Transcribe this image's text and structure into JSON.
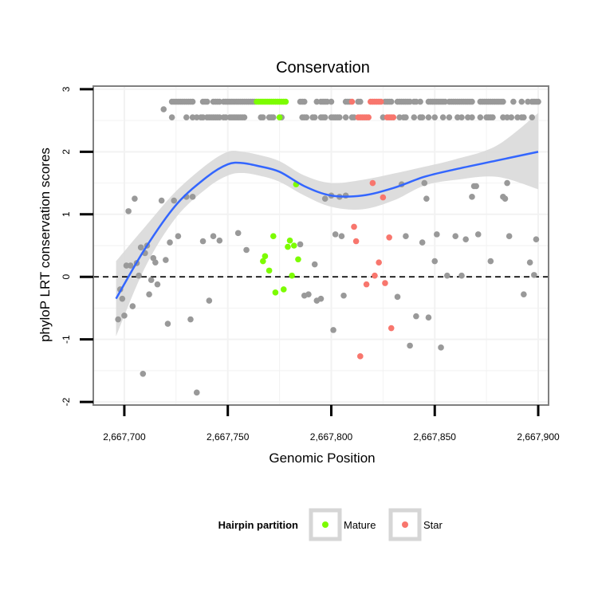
{
  "chart_data": {
    "type": "scatter",
    "title": "Conservation",
    "xlabel": "Genomic Position",
    "ylabel": "phyloP LRT conservation scores",
    "xlim": [
      2667685,
      2667905
    ],
    "ylim": [
      -2.05,
      3.05
    ],
    "x_ticks": [
      2667700,
      2667750,
      2667800,
      2667850,
      2667900
    ],
    "x_tick_labels": [
      "2,667,700",
      "2,667,750",
      "2,667,800",
      "2,667,850",
      "2,667,900"
    ],
    "y_ticks": [
      -2,
      -1,
      0,
      1,
      2,
      3
    ],
    "y_tick_labels": [
      "-2",
      "-1",
      "0",
      "1",
      "2",
      "3"
    ],
    "reference_line": {
      "y": 0,
      "style": "dashed"
    },
    "grid": true,
    "legend": {
      "title": "Hairpin partition",
      "position": "bottom",
      "entries": [
        {
          "label": "Mature",
          "color": "#7cfc00"
        },
        {
          "label": "Star",
          "color": "#f8766d"
        }
      ]
    },
    "smooth": {
      "color": "#3366ff",
      "band_color": "#d9d9d9",
      "x": [
        2667696,
        2667710,
        2667725,
        2667740,
        2667750,
        2667757,
        2667765,
        2667775,
        2667787,
        2667800,
        2667815,
        2667830,
        2667845,
        2667860,
        2667880,
        2667900
      ],
      "y": [
        -0.35,
        0.45,
        1.15,
        1.6,
        1.8,
        1.82,
        1.77,
        1.68,
        1.45,
        1.3,
        1.3,
        1.42,
        1.6,
        1.72,
        1.86,
        2.0
      ],
      "ymin": [
        -0.95,
        0.15,
        0.95,
        1.42,
        1.62,
        1.66,
        1.62,
        1.52,
        1.3,
        1.12,
        1.08,
        1.22,
        1.46,
        1.55,
        1.6,
        1.4
      ],
      "ymax": [
        0.25,
        0.8,
        1.37,
        1.8,
        2.0,
        2.0,
        1.95,
        1.85,
        1.62,
        1.5,
        1.55,
        1.65,
        1.76,
        1.88,
        2.1,
        2.62
      ]
    },
    "series": [
      {
        "name": "Other",
        "color": "#999999",
        "points": [
          [
            2667697,
            -0.68
          ],
          [
            2667698,
            -0.2
          ],
          [
            2667699,
            -0.35
          ],
          [
            2667700,
            -0.62
          ],
          [
            2667701,
            0.18
          ],
          [
            2667702,
            1.05
          ],
          [
            2667703,
            0.18
          ],
          [
            2667704,
            -0.47
          ],
          [
            2667705,
            1.25
          ],
          [
            2667706,
            0.22
          ],
          [
            2667707,
            0.02
          ],
          [
            2667708,
            0.47
          ],
          [
            2667709,
            -1.55
          ],
          [
            2667710,
            0.38
          ],
          [
            2667711,
            0.5
          ],
          [
            2667712,
            -0.28
          ],
          [
            2667713,
            -0.05
          ],
          [
            2667714,
            0.3
          ],
          [
            2667715,
            0.23
          ],
          [
            2667716,
            -0.12
          ],
          [
            2667718,
            1.22
          ],
          [
            2667719,
            2.68
          ],
          [
            2667720,
            0.27
          ],
          [
            2667721,
            -0.75
          ],
          [
            2667722,
            0.55
          ],
          [
            2667724,
            1.22
          ],
          [
            2667726,
            0.65
          ],
          [
            2667730,
            1.28
          ],
          [
            2667732,
            -0.68
          ],
          [
            2667733,
            1.28
          ],
          [
            2667735,
            -1.85
          ],
          [
            2667738,
            0.57
          ],
          [
            2667741,
            -0.38
          ],
          [
            2667743,
            0.65
          ],
          [
            2667746,
            0.58
          ],
          [
            2667755,
            0.7
          ],
          [
            2667759,
            0.43
          ],
          [
            2667785,
            0.52
          ],
          [
            2667787,
            -0.3
          ],
          [
            2667789,
            -0.28
          ],
          [
            2667792,
            0.2
          ],
          [
            2667793,
            -0.38
          ],
          [
            2667795,
            -0.35
          ],
          [
            2667797,
            1.25
          ],
          [
            2667800,
            1.3
          ],
          [
            2667801,
            -0.85
          ],
          [
            2667802,
            0.68
          ],
          [
            2667804,
            1.28
          ],
          [
            2667805,
            0.65
          ],
          [
            2667806,
            -0.3
          ],
          [
            2667807,
            1.3
          ],
          [
            2667832,
            -0.32
          ],
          [
            2667834,
            1.48
          ],
          [
            2667836,
            0.65
          ],
          [
            2667838,
            -1.1
          ],
          [
            2667841,
            -0.63
          ],
          [
            2667844,
            0.55
          ],
          [
            2667845,
            1.5
          ],
          [
            2667846,
            1.25
          ],
          [
            2667847,
            -0.65
          ],
          [
            2667850,
            0.25
          ],
          [
            2667851,
            0.68
          ],
          [
            2667853,
            -1.13
          ],
          [
            2667856,
            0.02
          ],
          [
            2667860,
            0.65
          ],
          [
            2667863,
            0.02
          ],
          [
            2667865,
            0.6
          ],
          [
            2667868,
            1.28
          ],
          [
            2667869,
            1.45
          ],
          [
            2667870,
            1.45
          ],
          [
            2667871,
            0.68
          ],
          [
            2667877,
            0.25
          ],
          [
            2667883,
            1.28
          ],
          [
            2667884,
            1.25
          ],
          [
            2667885,
            1.5
          ],
          [
            2667886,
            0.65
          ],
          [
            2667893,
            -0.28
          ],
          [
            2667896,
            0.23
          ],
          [
            2667898,
            0.03
          ],
          [
            2667899,
            0.6
          ]
        ]
      },
      {
        "name": "Mature",
        "color": "#7cfc00",
        "points": [
          [
            2667767,
            0.25
          ],
          [
            2667768,
            0.33
          ],
          [
            2667770,
            0.1
          ],
          [
            2667772,
            0.65
          ],
          [
            2667773,
            -0.25
          ],
          [
            2667777,
            -0.2
          ],
          [
            2667779,
            0.48
          ],
          [
            2667780,
            0.58
          ],
          [
            2667781,
            0.02
          ],
          [
            2667782,
            0.5
          ],
          [
            2667783,
            1.48
          ],
          [
            2667784,
            0.28
          ]
        ]
      },
      {
        "name": "Star",
        "color": "#f8766d",
        "points": [
          [
            2667811,
            0.8
          ],
          [
            2667812,
            0.57
          ],
          [
            2667814,
            -1.27
          ],
          [
            2667817,
            -0.12
          ],
          [
            2667820,
            1.5
          ],
          [
            2667821,
            0.02
          ],
          [
            2667823,
            0.23
          ],
          [
            2667825,
            1.27
          ],
          [
            2667826,
            -0.1
          ],
          [
            2667828,
            0.63
          ],
          [
            2667829,
            -0.82
          ]
        ]
      }
    ],
    "top_rows": [
      {
        "y": 2.8,
        "points": [
          {
            "x": [
              2667723,
              2667724,
              2667725,
              2667726,
              2667727,
              2667728,
              2667729,
              2667730,
              2667731,
              2667732,
              2667733,
              2667738,
              2667739,
              2667740,
              2667743,
              2667744,
              2667745,
              2667746,
              2667748,
              2667749,
              2667750,
              2667751,
              2667752,
              2667753,
              2667754,
              2667755,
              2667756,
              2667757,
              2667758,
              2667759,
              2667760,
              2667761,
              2667762,
              2667763,
              2667785,
              2667786,
              2667787,
              2667793,
              2667795,
              2667796,
              2667797,
              2667798,
              2667800,
              2667807,
              2667808,
              2667809,
              2667813,
              2667814,
              2667826,
              2667827,
              2667828,
              2667829,
              2667832,
              2667833,
              2667834,
              2667835,
              2667836,
              2667837,
              2667838,
              2667840,
              2667841,
              2667843,
              2667847,
              2667848,
              2667849,
              2667850,
              2667851,
              2667852,
              2667853,
              2667854,
              2667855,
              2667857,
              2667858,
              2667859,
              2667860,
              2667861,
              2667862,
              2667863,
              2667864,
              2667865,
              2667866,
              2667867,
              2667868,
              2667872,
              2667873,
              2667874,
              2667875,
              2667876,
              2667877,
              2667878,
              2667879,
              2667880,
              2667881,
              2667882,
              2667883,
              2667888,
              2667892,
              2667895,
              2667897,
              2667898,
              2667899,
              2667900
            ],
            "series": "Other"
          },
          {
            "x": [
              2667764,
              2667765,
              2667766,
              2667767,
              2667768,
              2667769,
              2667770,
              2667771,
              2667772,
              2667773,
              2667774,
              2667775,
              2667776,
              2667777,
              2667778
            ],
            "series": "Mature"
          },
          {
            "x": [
              2667810,
              2667819,
              2667820,
              2667821,
              2667822,
              2667823,
              2667824
            ],
            "series": "Star"
          }
        ]
      },
      {
        "y": 2.55,
        "points": [
          {
            "x": [
              2667723,
              2667730,
              2667733,
              2667735,
              2667737,
              2667738,
              2667740,
              2667741,
              2667742,
              2667743,
              2667744,
              2667745,
              2667746,
              2667748,
              2667749,
              2667751,
              2667752,
              2667753,
              2667754,
              2667755,
              2667756,
              2667757,
              2667758,
              2667766,
              2667767,
              2667770,
              2667771,
              2667772,
              2667776,
              2667786,
              2667787,
              2667788,
              2667791,
              2667792,
              2667795,
              2667796,
              2667797,
              2667800,
              2667801,
              2667802,
              2667803,
              2667804,
              2667807,
              2667810,
              2667811,
              2667825,
              2667833,
              2667835,
              2667836,
              2667840,
              2667843,
              2667844,
              2667847,
              2667850,
              2667854,
              2667857,
              2667861,
              2667863,
              2667866,
              2667868,
              2667872,
              2667875,
              2667876,
              2667877,
              2667878,
              2667883,
              2667885,
              2667887,
              2667890,
              2667892,
              2667893,
              2667897
            ],
            "series": "Other"
          },
          {
            "x": [
              2667775
            ],
            "series": "Mature"
          },
          {
            "x": [
              2667813,
              2667814,
              2667815,
              2667816,
              2667817,
              2667818,
              2667827,
              2667828,
              2667829,
              2667830
            ],
            "series": "Star"
          }
        ]
      }
    ]
  }
}
